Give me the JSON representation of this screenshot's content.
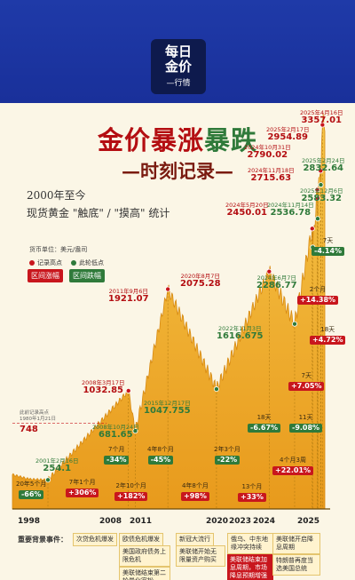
{
  "header": {
    "logo_line1": "每日",
    "logo_line2": "金价",
    "logo_line3": "—行情"
  },
  "title": {
    "p1": "金价",
    "p2": "暴涨",
    "p3": "暴跌",
    "sub": "—时刻记录—"
  },
  "intro": {
    "line1": "2000年至今",
    "line2": "现货黄金 \"触底\" / \"摸高\" 统计"
  },
  "unit": "货币单位：美元/盎司",
  "legend": {
    "peak": "记录高点",
    "trough": "此轮低点",
    "rise": "区间涨幅",
    "fall": "区间跌幅"
  },
  "colors": {
    "banner": "#1f3aa8",
    "red": "#c8161d",
    "green": "#2f7a3a",
    "area": "#f2b630",
    "bg": "#fbf6e6"
  },
  "record": {
    "label1": "此前记录高点",
    "label2": "1980年1月21日",
    "value": "748"
  },
  "chart_data": {
    "type": "area",
    "title": "金价暴涨暴跌",
    "subtitle": "时刻记录",
    "ylabel": "美元/盎司",
    "x_ticks": [
      "1998",
      "2008",
      "2011",
      "2020",
      "2023",
      "2024",
      "2025"
    ],
    "peaks": [
      {
        "date": "2008年3月17日",
        "value": "1032.85"
      },
      {
        "date": "2011年9月6日",
        "value": "1921.07"
      },
      {
        "date": "2020年8月7日",
        "value": "2075.28"
      },
      {
        "date": "2024年5月20日",
        "value": "2450.01"
      },
      {
        "date": "2024年10月31日",
        "value": "2790.02"
      },
      {
        "date": "2024年11月18日",
        "value": "2715.63"
      },
      {
        "date": "2025年2月17日",
        "value": "2954.89"
      },
      {
        "date": "2025年4月16日",
        "value": "3357.01"
      }
    ],
    "troughs": [
      {
        "date": "2001年2月16日",
        "value": "254.1"
      },
      {
        "date": "2008年10月24日",
        "value": "681.65"
      },
      {
        "date": "2015年12月17日",
        "value": "1047.755"
      },
      {
        "date": "2022年11月3日",
        "value": "1616.675"
      },
      {
        "date": "2024年6月7日",
        "value": "2286.77"
      },
      {
        "date": "2024年11月14日",
        "value": "2536.78"
      },
      {
        "date": "2025年2月24日",
        "value": "2832.64"
      },
      {
        "date": "2025年12月6日",
        "value": "2583.32"
      }
    ],
    "intervals": [
      {
        "gap": "20年5个月",
        "change": "-66%"
      },
      {
        "gap": "7年1个月",
        "change": "+306%"
      },
      {
        "gap": "7个月",
        "change": "-34%"
      },
      {
        "gap": "2年10个月",
        "change": "+182%"
      },
      {
        "gap": "4年8个月",
        "change": "-45%"
      },
      {
        "gap": "4年8个月",
        "change": "+98%"
      },
      {
        "gap": "2年3个月",
        "change": "-22%"
      },
      {
        "gap": "13个月",
        "change": "+33%"
      },
      {
        "gap": "18天",
        "change": "-6.67%"
      },
      {
        "gap": "4个月3周",
        "change": "+22.01%"
      },
      {
        "gap": "11天",
        "change": "-9.08%"
      },
      {
        "gap": "7天",
        "change": "+7.05%"
      },
      {
        "gap": "18天",
        "change": "+4.72%"
      },
      {
        "gap": "2个月",
        "change": "+14.38%"
      },
      {
        "gap": "7天",
        "change": "-4.14%"
      }
    ]
  },
  "events": {
    "title": "重要背景事件：",
    "items": [
      "次贷危机爆发",
      "欧债危机爆发",
      "美国政府债务上限危机",
      "美联储结束第二轮量化宽松",
      "新冠大流行",
      "美联储开始无限量资产购买",
      "俄乌、中东地缘冲突持续",
      "美联储结束加息周期，市场降息预期增强",
      "美联储开启降息周期",
      "特朗普再度当选美国总统"
    ]
  }
}
